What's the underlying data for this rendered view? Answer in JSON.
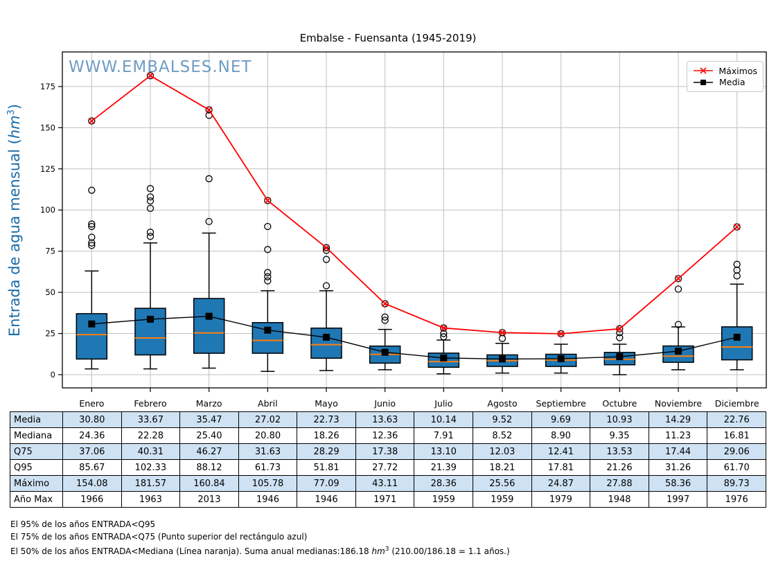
{
  "title": "Embalse - Fuensanta (1945-2019)",
  "watermark": "WWW.EMBALSES.NET",
  "y_axis": {
    "label_prefix": "Entrada de agua mensual (",
    "unit": "hm",
    "sup": "3",
    "suffix": ")"
  },
  "colors": {
    "box_fill": "#1f77b4",
    "box_edge": "#000000",
    "median_line": "#ff7f0e",
    "max_line": "#ff0000",
    "mean_line": "#000000",
    "grid": "#c0c0c0",
    "frame": "#000000",
    "watermark": "#6f9cc3",
    "ylabel": "#1a6ba8",
    "table_shade": "#cfe2f3"
  },
  "chart_data": {
    "type": "boxplot+line",
    "categories": [
      "Enero",
      "Febrero",
      "Marzo",
      "Abril",
      "Mayo",
      "Junio",
      "Julio",
      "Agosto",
      "Septiembre",
      "Octubre",
      "Noviembre",
      "Diciembre"
    ],
    "ylim": [
      -8,
      196
    ],
    "yticks": [
      0,
      25,
      50,
      75,
      100,
      125,
      150,
      175
    ],
    "grid": true,
    "legend_position": "upper right",
    "series": [
      {
        "name": "Máximos",
        "type": "line",
        "marker": "x",
        "color": "#ff0000",
        "values": [
          154.08,
          181.57,
          160.84,
          105.78,
          77.09,
          43.11,
          28.36,
          25.56,
          24.87,
          27.88,
          58.36,
          89.73
        ]
      },
      {
        "name": "Media",
        "type": "line",
        "marker": "square",
        "color": "#000000",
        "values": [
          30.8,
          33.67,
          35.47,
          27.02,
          22.73,
          13.63,
          10.14,
          9.52,
          9.69,
          10.93,
          14.29,
          22.76
        ]
      }
    ],
    "boxplots": [
      {
        "month": "Enero",
        "whisker_low": 3.5,
        "q1": 9.5,
        "median": 24.36,
        "q3": 37.06,
        "whisker_high": 63,
        "outliers": [
          78.5,
          80,
          83.5,
          90,
          91.5,
          112,
          154.08
        ]
      },
      {
        "month": "Febrero",
        "whisker_low": 3.5,
        "q1": 12,
        "median": 22.28,
        "q3": 40.31,
        "whisker_high": 80,
        "outliers": [
          84,
          86.5,
          101,
          105.5,
          108,
          113,
          181.57
        ]
      },
      {
        "month": "Marzo",
        "whisker_low": 4,
        "q1": 13,
        "median": 25.4,
        "q3": 46.27,
        "whisker_high": 86,
        "outliers": [
          93,
          119,
          157.5,
          160.84
        ]
      },
      {
        "month": "Abril",
        "whisker_low": 2,
        "q1": 13,
        "median": 20.8,
        "q3": 31.63,
        "whisker_high": 51,
        "outliers": [
          57,
          59.5,
          62,
          76,
          90,
          105.78
        ]
      },
      {
        "month": "Mayo",
        "whisker_low": 2.5,
        "q1": 10,
        "median": 18.26,
        "q3": 28.29,
        "whisker_high": 51,
        "outliers": [
          54,
          70,
          75.5,
          77.09
        ]
      },
      {
        "month": "Junio",
        "whisker_low": 3,
        "q1": 7,
        "median": 12.36,
        "q3": 17.38,
        "whisker_high": 27.5,
        "outliers": [
          33,
          35,
          43.11
        ]
      },
      {
        "month": "Julio",
        "whisker_low": 0.5,
        "q1": 4.5,
        "median": 7.91,
        "q3": 13.1,
        "whisker_high": 21,
        "outliers": [
          23,
          25,
          28.36
        ]
      },
      {
        "month": "Agosto",
        "whisker_low": 1,
        "q1": 5,
        "median": 8.52,
        "q3": 12.03,
        "whisker_high": 19,
        "outliers": [
          22,
          25.56
        ]
      },
      {
        "month": "Septiembre",
        "whisker_low": 1,
        "q1": 5,
        "median": 8.9,
        "q3": 12.41,
        "whisker_high": 18.5,
        "outliers": [
          24.87
        ]
      },
      {
        "month": "Octubre",
        "whisker_low": 0,
        "q1": 6,
        "median": 9.35,
        "q3": 13.53,
        "whisker_high": 18.5,
        "outliers": [
          22.5,
          25.5,
          27.88
        ]
      },
      {
        "month": "Noviembre",
        "whisker_low": 3,
        "q1": 7.5,
        "median": 11.23,
        "q3": 17.44,
        "whisker_high": 29,
        "outliers": [
          30.5,
          52,
          58.36
        ]
      },
      {
        "month": "Diciembre",
        "whisker_low": 3,
        "q1": 9,
        "median": 16.81,
        "q3": 29.06,
        "whisker_high": 55,
        "outliers": [
          60,
          63.5,
          67,
          89.73
        ]
      }
    ]
  },
  "table": {
    "rows": [
      {
        "label": "Media",
        "decimals": 2,
        "shaded": true,
        "values": [
          30.8,
          33.67,
          35.47,
          27.02,
          22.73,
          13.63,
          10.14,
          9.52,
          9.69,
          10.93,
          14.29,
          22.76
        ]
      },
      {
        "label": "Mediana",
        "decimals": 2,
        "shaded": false,
        "values": [
          24.36,
          22.28,
          25.4,
          20.8,
          18.26,
          12.36,
          7.91,
          8.52,
          8.9,
          9.35,
          11.23,
          16.81
        ]
      },
      {
        "label": "Q75",
        "decimals": 2,
        "shaded": true,
        "values": [
          37.06,
          40.31,
          46.27,
          31.63,
          28.29,
          17.38,
          13.1,
          12.03,
          12.41,
          13.53,
          17.44,
          29.06
        ]
      },
      {
        "label": "Q95",
        "decimals": 2,
        "shaded": false,
        "values": [
          85.67,
          102.33,
          88.12,
          61.73,
          51.81,
          27.72,
          21.39,
          18.21,
          17.81,
          21.26,
          31.26,
          61.7
        ]
      },
      {
        "label": "Máximo",
        "decimals": 2,
        "shaded": true,
        "values": [
          154.08,
          181.57,
          160.84,
          105.78,
          77.09,
          43.11,
          28.36,
          25.56,
          24.87,
          27.88,
          58.36,
          89.73
        ]
      },
      {
        "label": "Año Max",
        "decimals": 0,
        "shaded": false,
        "values": [
          1966,
          1963,
          2013,
          1946,
          1946,
          1971,
          1959,
          1959,
          1979,
          1948,
          1997,
          1976
        ]
      }
    ]
  },
  "footer": {
    "line1": "El 95% de los años ENTRADA<Q95",
    "line2": "El 75% de los años ENTRADA<Q75 (Punto superior del rectángulo azul)",
    "line3_pre": "El 50% de los años ENTRADA<Mediana (Línea naranja). Suma anual medianas:186.18 ",
    "line3_unit": "hm",
    "line3_sup": "3",
    "line3_post": " (210.00/186.18 = 1.1 años.)"
  }
}
